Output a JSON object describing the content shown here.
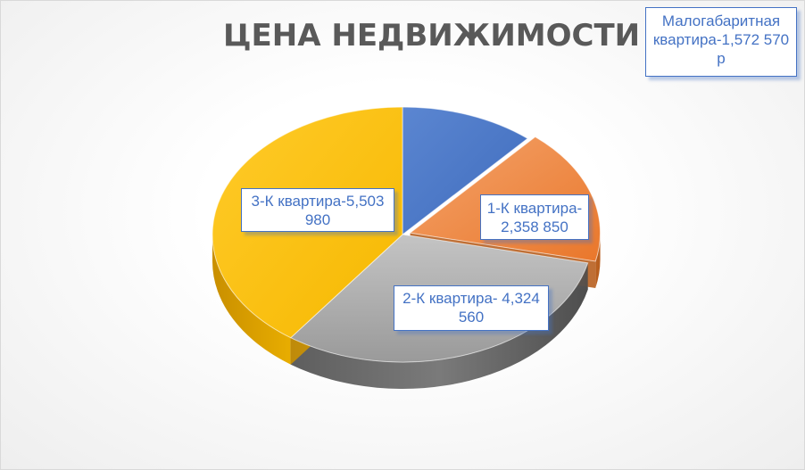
{
  "chart_data": {
    "type": "pie",
    "title": "ЦЕНА НЕДВИЖИМОСТИ",
    "categories": [
      "Малогабаритная квартира",
      "1-К квартира",
      "2-К квартира",
      "3-К квартира"
    ],
    "values": [
      1572570,
      2358850,
      4324560,
      5503980
    ],
    "colors": [
      "#4472c4",
      "#ed7d31",
      "#a5a5a5",
      "#ffc000"
    ],
    "data_labels": [
      "Малогабаритная\nквартира-1,572 570\nр",
      "1-К квартира-\n2,358 850",
      "2-К квартира- 4,324\n560",
      "3-К квартира-5,503\n980"
    ]
  }
}
